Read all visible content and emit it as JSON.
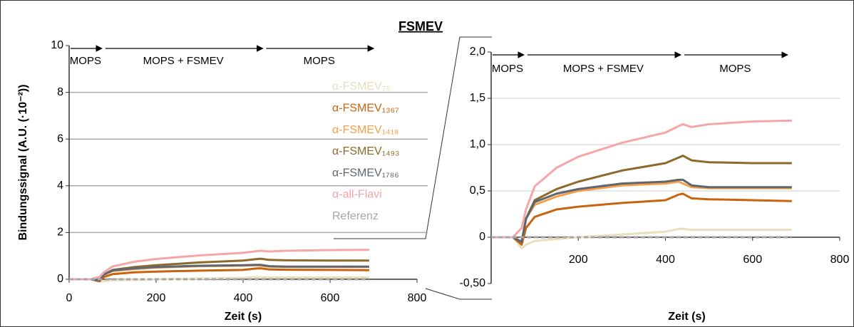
{
  "chart_data": [
    {
      "type": "line",
      "title": "FSMEV",
      "xlabel": "Zeit (s)",
      "ylabel": "Bindungssignal (A.U. (·10⁻²))",
      "x": [
        0,
        50,
        70,
        80,
        100,
        150,
        200,
        300,
        400,
        430,
        440,
        460,
        500,
        600,
        690
      ],
      "xlim": [
        0,
        800
      ],
      "xticks": [
        0,
        200,
        400,
        600,
        800
      ],
      "ylim": [
        0,
        10
      ],
      "yticks": [
        0,
        2,
        4,
        6,
        8,
        10
      ],
      "grid": true,
      "legend": "right",
      "phases": [
        {
          "label": "MOPS",
          "x": [
            0,
            75
          ]
        },
        {
          "label": "MOPS + FSMEV",
          "x": [
            80,
            445
          ]
        },
        {
          "label": "MOPS",
          "x": [
            450,
            700
          ]
        }
      ],
      "series": [
        {
          "name": "α-FSMEV₇₅",
          "color": "#e8dfbd",
          "values": [
            0,
            0,
            -0.12,
            -0.08,
            -0.04,
            -0.02,
            0,
            0.03,
            0.06,
            0.09,
            0.09,
            0.08,
            0.08,
            0.08,
            0.08
          ]
        },
        {
          "name": "α-FSMEV₁₃₆₇",
          "color": "#c8640e",
          "values": [
            0,
            0,
            -0.08,
            0.1,
            0.22,
            0.3,
            0.33,
            0.37,
            0.4,
            0.46,
            0.47,
            0.42,
            0.41,
            0.4,
            0.39
          ]
        },
        {
          "name": "α-FSMEV₁₄₁₈",
          "color": "#f4a04a",
          "values": [
            0,
            0,
            -0.05,
            0.2,
            0.35,
            0.44,
            0.5,
            0.56,
            0.58,
            0.6,
            0.58,
            0.54,
            0.53,
            0.53,
            0.53
          ]
        },
        {
          "name": "α-FSMEV₁₄₉₃",
          "color": "#8c6a2b",
          "values": [
            0,
            0,
            -0.05,
            0.2,
            0.4,
            0.52,
            0.6,
            0.72,
            0.8,
            0.86,
            0.88,
            0.83,
            0.81,
            0.8,
            0.8
          ]
        },
        {
          "name": "α-FSMEV₁₇₈₆",
          "color": "#5f6670",
          "values": [
            0,
            0,
            -0.05,
            0.2,
            0.38,
            0.47,
            0.52,
            0.58,
            0.6,
            0.62,
            0.62,
            0.56,
            0.54,
            0.54,
            0.54
          ]
        },
        {
          "name": "α-all-Flavi",
          "color": "#f4a6a8",
          "values": [
            0,
            0,
            0.1,
            0.3,
            0.55,
            0.75,
            0.87,
            1.02,
            1.13,
            1.2,
            1.22,
            1.19,
            1.22,
            1.25,
            1.26
          ]
        },
        {
          "name": "Referenz",
          "color": "#a6a6a6",
          "dashed": true,
          "values": [
            0,
            0,
            0,
            0,
            0,
            0,
            0,
            0,
            0,
            0,
            0,
            0,
            0,
            0,
            0
          ]
        }
      ]
    },
    {
      "type": "line",
      "xlabel": "Zeit (s)",
      "x": [
        0,
        50,
        70,
        80,
        100,
        150,
        200,
        300,
        400,
        430,
        440,
        460,
        500,
        600,
        690
      ],
      "xlim": [
        0,
        800
      ],
      "xticks": [
        200,
        400,
        600,
        800
      ],
      "ylim": [
        -0.5,
        2
      ],
      "yticks": [
        {
          "value": -0.5,
          "label": "-0,50"
        },
        0,
        {
          "value": 0.5,
          "label": "0,5"
        },
        {
          "value": 1,
          "label": "1,0"
        },
        {
          "value": 1.5,
          "label": "1,5"
        },
        {
          "value": 2,
          "label": "2,0"
        }
      ],
      "grid": true,
      "phases": [
        {
          "label": "MOPS",
          "x": [
            0,
            75
          ]
        },
        {
          "label": "MOPS + FSMEV",
          "x": [
            80,
            435
          ]
        },
        {
          "label": "MOPS",
          "x": [
            440,
            680
          ]
        }
      ],
      "series": [
        {
          "name": "α-FSMEV₇₅",
          "color": "#e8dfbd",
          "values": [
            0,
            0,
            -0.12,
            -0.08,
            -0.04,
            -0.02,
            0,
            0.03,
            0.06,
            0.09,
            0.09,
            0.08,
            0.08,
            0.08,
            0.08
          ]
        },
        {
          "name": "α-FSMEV₁₃₆₇",
          "color": "#c8640e",
          "values": [
            0,
            0,
            -0.08,
            0.1,
            0.22,
            0.3,
            0.33,
            0.37,
            0.4,
            0.46,
            0.47,
            0.42,
            0.41,
            0.4,
            0.39
          ]
        },
        {
          "name": "α-FSMEV₁₄₁₈",
          "color": "#f4a04a",
          "values": [
            0,
            0,
            -0.05,
            0.2,
            0.35,
            0.44,
            0.5,
            0.56,
            0.58,
            0.6,
            0.58,
            0.54,
            0.53,
            0.53,
            0.53
          ]
        },
        {
          "name": "α-FSMEV₁₄₉₃",
          "color": "#8c6a2b",
          "values": [
            0,
            0,
            -0.05,
            0.2,
            0.4,
            0.52,
            0.6,
            0.72,
            0.8,
            0.86,
            0.88,
            0.83,
            0.81,
            0.8,
            0.8
          ]
        },
        {
          "name": "α-FSMEV₁₇₈₆",
          "color": "#5f6670",
          "values": [
            0,
            0,
            -0.05,
            0.2,
            0.38,
            0.47,
            0.52,
            0.58,
            0.6,
            0.62,
            0.62,
            0.56,
            0.54,
            0.54,
            0.54
          ]
        },
        {
          "name": "α-all-Flavi",
          "color": "#f4a6a8",
          "values": [
            0,
            0,
            0.1,
            0.3,
            0.55,
            0.75,
            0.87,
            1.02,
            1.13,
            1.2,
            1.22,
            1.19,
            1.22,
            1.25,
            1.26
          ]
        },
        {
          "name": "Referenz",
          "color": "#a6a6a6",
          "dashed": true,
          "values": [
            0,
            0,
            0,
            0,
            0,
            0,
            0,
            0,
            0,
            0,
            0,
            0,
            0,
            0,
            0
          ]
        }
      ]
    }
  ]
}
